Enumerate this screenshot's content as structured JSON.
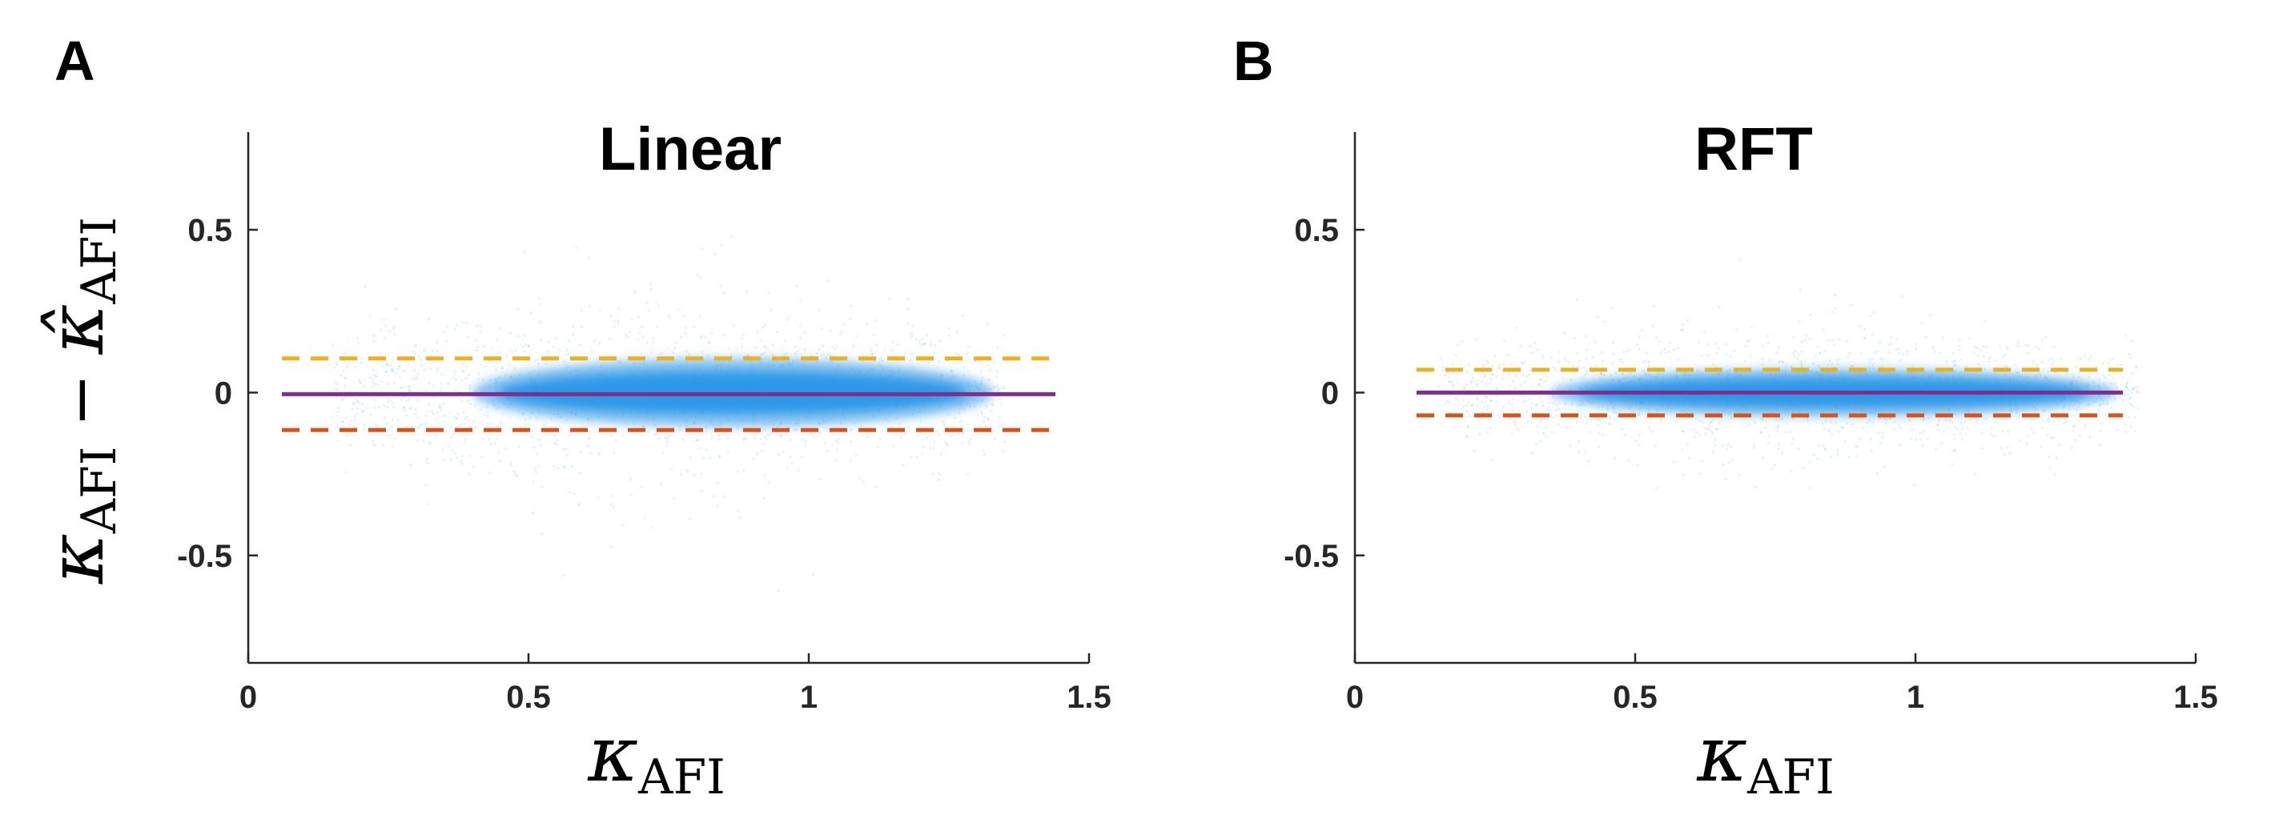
{
  "chart_data": [
    {
      "panel_label": "A",
      "type": "scatter",
      "title": "Linear",
      "xlabel": {
        "base": "κ",
        "sub": "AFI"
      },
      "ylabel": {
        "left": "κ",
        "left_sub": "AFI",
        "op": "−",
        "right": "κ̂",
        "right_sub": "AFI"
      },
      "xlim": [
        0,
        1.5
      ],
      "ylim": [
        -0.83,
        0.8
      ],
      "xticks": [
        0,
        0.5,
        1,
        1.5
      ],
      "xtick_labels": [
        "0",
        "0.5",
        "1",
        "1.5"
      ],
      "yticks": [
        0.5,
        0,
        -0.5
      ],
      "ytick_labels": [
        "0.5",
        "0",
        "-0.5"
      ],
      "mean_line": {
        "value": -0.005,
        "x_range": [
          0.06,
          1.44
        ],
        "color": "#7E2F8E"
      },
      "upper_loa": {
        "value": 0.105,
        "x_range": [
          0.06,
          1.44
        ],
        "color": "#EDB120"
      },
      "lower_loa": {
        "value": -0.115,
        "x_range": [
          0.06,
          1.44
        ],
        "color": "#D95319"
      },
      "cloud": {
        "x_range": [
          0.4,
          1.33
        ],
        "core_center": 0.0,
        "core_spread": 0.05,
        "outer_x_range": [
          0.15,
          1.35
        ],
        "outer_spread": 0.14,
        "color": "#1E90E6"
      }
    },
    {
      "panel_label": "B",
      "type": "scatter",
      "title": "RFT",
      "xlabel": {
        "base": "κ",
        "sub": "AFI"
      },
      "ylabel": null,
      "xlim": [
        0,
        1.5
      ],
      "ylim": [
        -0.83,
        0.8
      ],
      "xticks": [
        0,
        0.5,
        1,
        1.5
      ],
      "xtick_labels": [
        "0",
        "0.5",
        "1",
        "1.5"
      ],
      "yticks": [
        0.5,
        0,
        -0.5
      ],
      "ytick_labels": [
        "0.5",
        "0",
        "-0.5"
      ],
      "mean_line": {
        "value": 0.0,
        "x_range": [
          0.11,
          1.37
        ],
        "color": "#7E2F8E"
      },
      "upper_loa": {
        "value": 0.07,
        "x_range": [
          0.11,
          1.37
        ],
        "color": "#EDB120"
      },
      "lower_loa": {
        "value": -0.07,
        "x_range": [
          0.11,
          1.37
        ],
        "color": "#D95319"
      },
      "cloud": {
        "x_range": [
          0.35,
          1.36
        ],
        "core_center": 0.0,
        "core_spread": 0.035,
        "outer_x_range": [
          0.15,
          1.4
        ],
        "outer_spread": 0.1,
        "color": "#1E90E6"
      }
    }
  ]
}
